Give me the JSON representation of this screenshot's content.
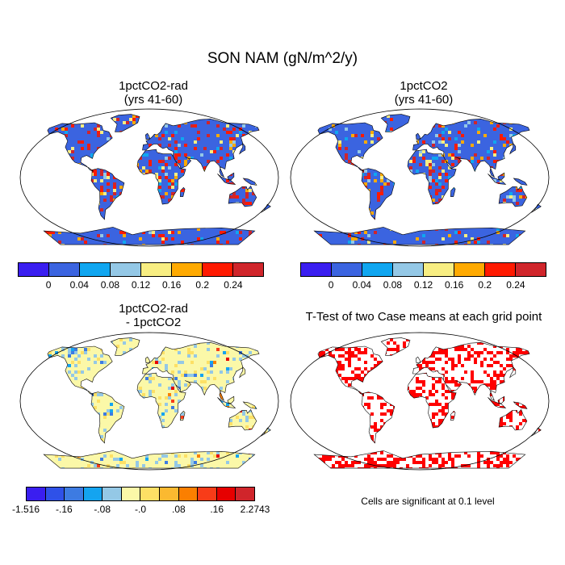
{
  "title": "SON NAM (gN/m^2/y)",
  "panels": {
    "tl": {
      "title": "1pctCO2-rad\n(yrs 41-60)"
    },
    "tr": {
      "title": "1pctCO2\n(yrs 41-60)"
    },
    "bl": {
      "title": "1pctCO2-rad\n- 1pctCO2"
    },
    "br": {
      "title": "T-Test of two Case means at each grid point"
    }
  },
  "colorbar_top": {
    "colors": [
      "#3a1ef0",
      "#3b64e0",
      "#10a6f0",
      "#94c8e6",
      "#f8ee82",
      "#ffaa00",
      "#ff1a00",
      "#d0252b"
    ],
    "labels": [
      "0",
      "0.04",
      "0.08",
      "0.12",
      "0.16",
      "0.2",
      "0.24"
    ]
  },
  "colorbar_bottom": {
    "colors": [
      "#3a1ef0",
      "#2f51e8",
      "#3d7be2",
      "#14a4f0",
      "#94c8e6",
      "#fbf8a8",
      "#fde065",
      "#fbb930",
      "#fb7f00",
      "#f83c18",
      "#e60000",
      "#d0252b"
    ],
    "labels": [
      "-1.516",
      "-.16",
      "-.08",
      "-.0",
      ".08",
      ".16",
      "2.2743"
    ]
  },
  "note": "Cells are significant at 0.1 level",
  "colors": {
    "ocean": "#ffffff",
    "land_base_top": "#3b64e0",
    "land_base_diff": "#fbf8a8",
    "significant": "#ff0000",
    "coast": "#000000"
  }
}
